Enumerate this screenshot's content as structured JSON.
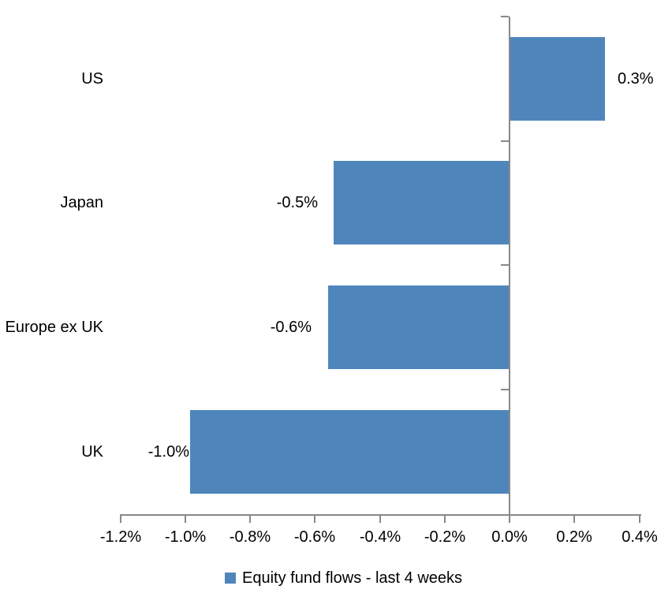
{
  "chart_data": {
    "type": "bar",
    "orientation": "horizontal",
    "categories": [
      "US",
      "Japan",
      "Europe ex UK",
      "UK"
    ],
    "series": [
      {
        "name": "Equity fund flows - last 4 weeks",
        "values": [
          0.3,
          -0.5,
          -0.6,
          -1.0
        ],
        "data_labels": [
          "0.3%",
          "-0.5%",
          "-0.6%",
          "-1.0%"
        ],
        "plotted_values": [
          0.295,
          -0.542,
          -0.559,
          -0.985
        ]
      }
    ],
    "xlabel": "",
    "ylabel": "",
    "xlim": [
      -1.2,
      0.4
    ],
    "x_ticks": [
      -1.2,
      -1.0,
      -0.8,
      -0.6,
      -0.4,
      -0.2,
      0.0,
      0.2,
      0.4
    ],
    "x_tick_labels": [
      "-1.2%",
      "-1.0%",
      "-0.8%",
      "-0.6%",
      "-0.4%",
      "-0.2%",
      "0.0%",
      "0.2%",
      "0.4%"
    ],
    "grid": false,
    "data_label_position": "outside-end",
    "legend": {
      "position": "bottom-center",
      "label": "Equity fund flows - last 4 weeks"
    },
    "colors": {
      "bar": "#4E86BC",
      "axis": "#898989",
      "text": "#000000",
      "background": "#FFFFFF"
    }
  }
}
